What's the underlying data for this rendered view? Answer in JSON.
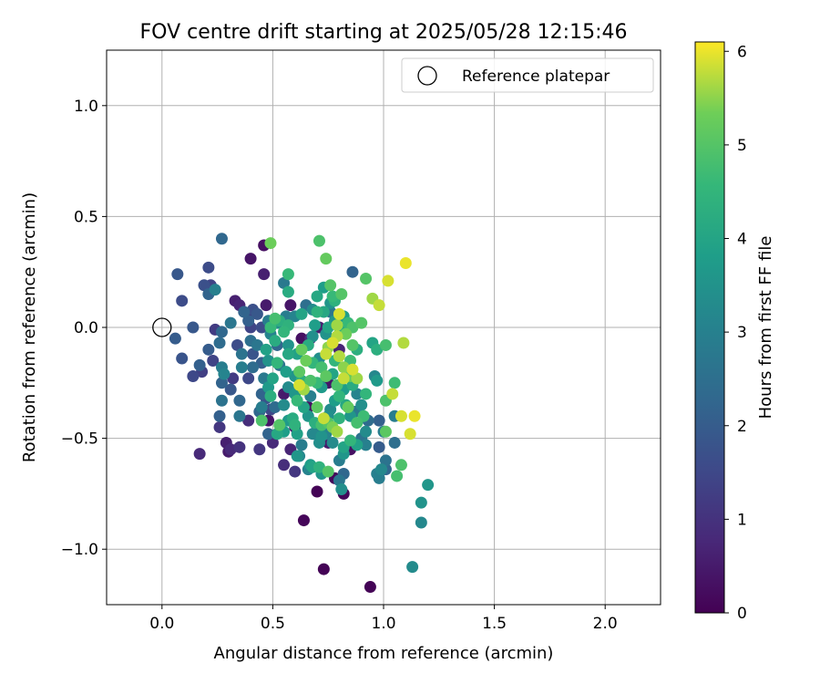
{
  "chart_data": {
    "type": "scatter",
    "title": "FOV centre drift starting at 2025/05/28 12:15:46",
    "xlabel": "Angular distance from reference (arcmin)",
    "ylabel": "Rotation from reference (arcmin)",
    "xlim": [
      -0.25,
      2.25
    ],
    "ylim": [
      -1.25,
      1.25
    ],
    "xticks": [
      0.0,
      0.5,
      1.0,
      1.5,
      2.0
    ],
    "xtick_labels": [
      "0.0",
      "0.5",
      "1.0",
      "1.5",
      "2.0"
    ],
    "yticks": [
      -1.0,
      -0.5,
      0.0,
      0.5,
      1.0
    ],
    "ytick_labels": [
      "−1.0",
      "−0.5",
      "0.0",
      "0.5",
      "1.0"
    ],
    "grid": true,
    "legend": {
      "position": "top-right",
      "entries": [
        "Reference platepar"
      ]
    },
    "reference_point": {
      "x": 0.0,
      "y": 0.0
    },
    "colorbar": {
      "label": "Hours from first FF file",
      "colormap": "viridis",
      "min": 0,
      "max": 6.1,
      "ticks": [
        0,
        1,
        2,
        3,
        4,
        5,
        6
      ],
      "tick_labels": [
        "0",
        "1",
        "2",
        "3",
        "4",
        "5",
        "6"
      ]
    },
    "points": [
      [
        0.73,
        -1.09,
        0.05
      ],
      [
        0.94,
        -1.17,
        0.05
      ],
      [
        0.64,
        -0.87,
        0.1
      ],
      [
        0.7,
        -0.74,
        0.05
      ],
      [
        0.82,
        -0.75,
        0.1
      ],
      [
        0.78,
        -0.68,
        0.15
      ],
      [
        0.4,
        0.31,
        0.4
      ],
      [
        0.46,
        0.24,
        0.6
      ],
      [
        0.46,
        0.37,
        0.3
      ],
      [
        0.58,
        0.1,
        0.4
      ],
      [
        0.47,
        0.1,
        0.5
      ],
      [
        0.33,
        0.12,
        0.6
      ],
      [
        0.35,
        0.1,
        0.7
      ],
      [
        0.41,
        0.07,
        0.5
      ],
      [
        0.63,
        -0.05,
        0.3
      ],
      [
        0.71,
        0.0,
        0.6
      ],
      [
        0.67,
        -0.05,
        0.8
      ],
      [
        0.8,
        -0.1,
        0.7
      ],
      [
        0.75,
        -0.25,
        0.4
      ],
      [
        0.66,
        -0.36,
        0.3
      ],
      [
        0.55,
        -0.3,
        0.5
      ],
      [
        0.48,
        -0.42,
        0.4
      ],
      [
        0.6,
        -0.45,
        0.6
      ],
      [
        0.69,
        -0.48,
        0.2
      ],
      [
        0.75,
        -0.52,
        0.5
      ],
      [
        0.85,
        -0.55,
        0.3
      ],
      [
        0.58,
        -0.55,
        0.7
      ],
      [
        0.5,
        -0.52,
        0.8
      ],
      [
        0.55,
        -0.62,
        0.9
      ],
      [
        0.6,
        -0.65,
        1.1
      ],
      [
        0.29,
        -0.52,
        0.6
      ],
      [
        0.31,
        -0.55,
        0.8
      ],
      [
        0.3,
        -0.56,
        0.5
      ],
      [
        0.35,
        -0.54,
        1.0
      ],
      [
        0.44,
        -0.55,
        1.1
      ],
      [
        0.39,
        -0.42,
        0.9
      ],
      [
        0.17,
        -0.57,
        0.8
      ],
      [
        0.26,
        -0.45,
        1.1
      ],
      [
        0.18,
        -0.2,
        1.3
      ],
      [
        0.14,
        -0.22,
        1.5
      ],
      [
        0.09,
        -0.14,
        1.8
      ],
      [
        0.06,
        -0.05,
        2.0
      ],
      [
        0.09,
        0.12,
        1.6
      ],
      [
        0.07,
        0.24,
        1.9
      ],
      [
        0.19,
        0.19,
        1.7
      ],
      [
        0.21,
        0.27,
        1.6
      ],
      [
        0.22,
        0.19,
        1.4
      ],
      [
        0.21,
        0.15,
        2.2
      ],
      [
        0.24,
        0.17,
        3.0
      ],
      [
        0.24,
        -0.01,
        1.2
      ],
      [
        0.14,
        0.0,
        1.9
      ],
      [
        0.17,
        -0.17,
        2.1
      ],
      [
        0.21,
        -0.1,
        2.0
      ],
      [
        0.23,
        -0.15,
        1.4
      ],
      [
        0.26,
        -0.07,
        2.4
      ],
      [
        0.27,
        -0.02,
        2.3
      ],
      [
        0.31,
        0.02,
        2.7
      ],
      [
        0.27,
        -0.18,
        2.9
      ],
      [
        0.28,
        -0.21,
        3.1
      ],
      [
        0.27,
        -0.25,
        2.2
      ],
      [
        0.27,
        -0.33,
        2.6
      ],
      [
        0.26,
        -0.4,
        2.1
      ],
      [
        0.35,
        -0.33,
        2.3
      ],
      [
        0.35,
        -0.4,
        2.7
      ],
      [
        0.27,
        0.4,
        2.3
      ],
      [
        0.37,
        0.07,
        2.2
      ],
      [
        0.39,
        0.03,
        2.1
      ],
      [
        0.41,
        0.08,
        1.7
      ],
      [
        0.43,
        0.06,
        1.9
      ],
      [
        0.4,
        0.0,
        1.4
      ],
      [
        0.34,
        -0.08,
        1.6
      ],
      [
        0.36,
        -0.12,
        2.6
      ],
      [
        0.4,
        -0.06,
        2.5
      ],
      [
        0.41,
        -0.12,
        1.8
      ],
      [
        0.43,
        -0.08,
        2.7
      ],
      [
        0.41,
        -0.18,
        2.4
      ],
      [
        0.39,
        -0.23,
        1.5
      ],
      [
        0.32,
        -0.23,
        1.2
      ],
      [
        0.45,
        -0.16,
        2.1
      ],
      [
        0.46,
        -0.23,
        2.8
      ],
      [
        0.45,
        -0.3,
        2.2
      ],
      [
        0.47,
        -0.32,
        1.8
      ],
      [
        0.49,
        -0.37,
        1.5
      ],
      [
        0.45,
        -0.36,
        2.9
      ],
      [
        0.51,
        -0.36,
        2.4
      ],
      [
        0.49,
        -0.03,
        3.1
      ],
      [
        0.48,
        0.03,
        2.9
      ],
      [
        0.45,
        0.0,
        1.6
      ],
      [
        0.52,
        -0.08,
        2.3
      ],
      [
        0.53,
        -0.17,
        2.6
      ],
      [
        0.52,
        0.02,
        3.3
      ],
      [
        0.55,
        -0.02,
        4.5
      ],
      [
        0.57,
        0.01,
        4.4
      ],
      [
        0.57,
        -0.12,
        4.1
      ],
      [
        0.56,
        -0.2,
        3.8
      ],
      [
        0.6,
        -0.22,
        3.5
      ],
      [
        0.57,
        -0.27,
        3.3
      ],
      [
        0.61,
        -0.33,
        4.6
      ],
      [
        0.59,
        -0.41,
        4.2
      ],
      [
        0.61,
        -0.48,
        3.9
      ],
      [
        0.63,
        -0.53,
        2.9
      ],
      [
        0.61,
        -0.58,
        3.6
      ],
      [
        0.66,
        -0.64,
        3.1
      ],
      [
        0.68,
        -0.63,
        4.0
      ],
      [
        0.71,
        -0.52,
        3.4
      ],
      [
        0.74,
        -0.48,
        3.1
      ],
      [
        0.72,
        -0.44,
        4.8
      ],
      [
        0.75,
        -0.43,
        5.0
      ],
      [
        0.77,
        -0.45,
        5.4
      ],
      [
        0.79,
        -0.47,
        5.6
      ],
      [
        0.8,
        -0.41,
        4.4
      ],
      [
        0.83,
        -0.35,
        4.1
      ],
      [
        0.82,
        -0.28,
        3.8
      ],
      [
        0.85,
        -0.22,
        5.2
      ],
      [
        0.82,
        -0.18,
        5.5
      ],
      [
        0.85,
        -0.15,
        4.7
      ],
      [
        0.88,
        -0.1,
        4.3
      ],
      [
        0.86,
        -0.08,
        5.0
      ],
      [
        0.83,
        -0.03,
        5.3
      ],
      [
        0.86,
        0.0,
        4.9
      ],
      [
        0.9,
        0.02,
        5.0
      ],
      [
        0.84,
        0.02,
        4.6
      ],
      [
        0.8,
        0.0,
        4.2
      ],
      [
        0.79,
        0.01,
        5.6
      ],
      [
        0.82,
        0.05,
        3.8
      ],
      [
        0.8,
        0.06,
        5.9
      ],
      [
        0.78,
        0.03,
        3.6
      ],
      [
        0.75,
        0.0,
        4.0
      ],
      [
        0.74,
        -0.03,
        3.5
      ],
      [
        0.73,
        0.07,
        4.1
      ],
      [
        0.7,
        0.07,
        4.4
      ],
      [
        0.69,
        0.01,
        3.8
      ],
      [
        0.68,
        -0.04,
        3.4
      ],
      [
        0.66,
        -0.08,
        4.2
      ],
      [
        0.63,
        -0.1,
        5.2
      ],
      [
        0.61,
        -0.12,
        3.9
      ],
      [
        0.65,
        -0.15,
        5.3
      ],
      [
        0.68,
        -0.16,
        4.5
      ],
      [
        0.71,
        -0.14,
        3.4
      ],
      [
        0.72,
        -0.18,
        4.8
      ],
      [
        0.74,
        -0.12,
        5.8
      ],
      [
        0.75,
        -0.09,
        5.5
      ],
      [
        0.77,
        -0.07,
        5.9
      ],
      [
        0.79,
        -0.04,
        5.7
      ],
      [
        0.8,
        -0.13,
        5.7
      ],
      [
        0.77,
        -0.21,
        4.0
      ],
      [
        0.74,
        -0.22,
        5.1
      ],
      [
        0.72,
        -0.27,
        3.7
      ],
      [
        0.7,
        -0.25,
        4.6
      ],
      [
        0.67,
        -0.24,
        4.9
      ],
      [
        0.63,
        -0.24,
        4.3
      ],
      [
        0.64,
        -0.28,
        5.6
      ],
      [
        0.62,
        -0.26,
        5.9
      ],
      [
        0.6,
        -0.3,
        3.6
      ],
      [
        0.64,
        -0.36,
        4.0
      ],
      [
        0.66,
        -0.4,
        3.6
      ],
      [
        0.69,
        -0.43,
        4.3
      ],
      [
        0.68,
        -0.48,
        3.2
      ],
      [
        0.7,
        -0.45,
        3.0
      ],
      [
        0.72,
        -0.49,
        3.5
      ],
      [
        0.73,
        -0.41,
        5.8
      ],
      [
        0.76,
        -0.37,
        3.3
      ],
      [
        0.78,
        -0.33,
        3.8
      ],
      [
        0.8,
        -0.31,
        4.5
      ],
      [
        0.79,
        -0.26,
        4.9
      ],
      [
        0.82,
        -0.23,
        5.8
      ],
      [
        0.86,
        -0.19,
        5.9
      ],
      [
        0.88,
        -0.23,
        5.6
      ],
      [
        0.86,
        -0.26,
        4.2
      ],
      [
        0.88,
        -0.3,
        3.1
      ],
      [
        0.9,
        -0.35,
        3.4
      ],
      [
        0.87,
        -0.38,
        2.8
      ],
      [
        0.85,
        -0.4,
        3.6
      ],
      [
        0.88,
        -0.43,
        4.8
      ],
      [
        0.91,
        -0.4,
        4.7
      ],
      [
        0.93,
        -0.42,
        2.4
      ],
      [
        0.92,
        -0.47,
        3.3
      ],
      [
        0.9,
        -0.5,
        2.6
      ],
      [
        0.92,
        -0.53,
        3.0
      ],
      [
        0.88,
        -0.53,
        3.9
      ],
      [
        0.85,
        -0.51,
        4.5
      ],
      [
        0.82,
        -0.54,
        4.0
      ],
      [
        0.82,
        -0.57,
        3.6
      ],
      [
        0.8,
        -0.6,
        2.9
      ],
      [
        0.82,
        -0.66,
        2.3
      ],
      [
        0.8,
        -0.69,
        2.7
      ],
      [
        0.81,
        -0.73,
        3.4
      ],
      [
        0.75,
        -0.65,
        5.0
      ],
      [
        0.72,
        -0.66,
        3.6
      ],
      [
        0.71,
        -0.63,
        4.4
      ],
      [
        0.67,
        -0.62,
        3.8
      ],
      [
        0.62,
        -0.58,
        3.2
      ],
      [
        0.6,
        -0.44,
        4.4
      ],
      [
        0.57,
        -0.42,
        3.7
      ],
      [
        0.53,
        -0.44,
        5.0
      ],
      [
        0.55,
        -0.47,
        3.8
      ],
      [
        0.52,
        -0.48,
        4.1
      ],
      [
        0.48,
        -0.48,
        2.2
      ],
      [
        0.45,
        -0.42,
        4.9
      ],
      [
        0.49,
        -0.31,
        4.3
      ],
      [
        0.48,
        -0.27,
        3.7
      ],
      [
        0.5,
        -0.23,
        4.0
      ],
      [
        0.52,
        -0.16,
        4.5
      ],
      [
        0.48,
        -0.15,
        3.5
      ],
      [
        0.47,
        -0.1,
        3.9
      ],
      [
        0.51,
        -0.06,
        4.2
      ],
      [
        0.49,
        0.0,
        4.6
      ],
      [
        0.51,
        0.04,
        4.8
      ],
      [
        0.53,
        0.03,
        4.3
      ],
      [
        0.56,
        0.05,
        2.9
      ],
      [
        0.57,
        0.16,
        4.2
      ],
      [
        0.55,
        0.2,
        2.8
      ],
      [
        0.57,
        0.24,
        4.6
      ],
      [
        0.49,
        0.38,
        5.3
      ],
      [
        0.6,
        0.05,
        3.1
      ],
      [
        0.63,
        0.06,
        4.0
      ],
      [
        0.65,
        0.1,
        2.5
      ],
      [
        0.68,
        0.08,
        3.3
      ],
      [
        0.7,
        0.14,
        4.1
      ],
      [
        0.71,
        0.39,
        4.9
      ],
      [
        0.73,
        0.18,
        3.8
      ],
      [
        0.74,
        0.31,
        5.2
      ],
      [
        0.76,
        0.19,
        5.0
      ],
      [
        0.77,
        0.14,
        4.6
      ],
      [
        0.76,
        0.11,
        3.6
      ],
      [
        0.76,
        0.07,
        2.7
      ],
      [
        0.78,
        0.12,
        4.4
      ],
      [
        0.81,
        0.15,
        5.0
      ],
      [
        0.86,
        0.25,
        2.2
      ],
      [
        0.92,
        0.22,
        5.0
      ],
      [
        0.95,
        0.13,
        5.6
      ],
      [
        0.98,
        0.1,
        5.8
      ],
      [
        1.02,
        0.21,
        5.9
      ],
      [
        1.1,
        0.29,
        6.0
      ],
      [
        0.95,
        -0.07,
        4.0
      ],
      [
        0.97,
        -0.1,
        4.3
      ],
      [
        0.96,
        -0.22,
        3.2
      ],
      [
        0.97,
        -0.24,
        3.7
      ],
      [
        0.98,
        -0.42,
        2.1
      ],
      [
        1.0,
        -0.47,
        2.9
      ],
      [
        0.98,
        -0.54,
        2.0
      ],
      [
        1.01,
        -0.6,
        2.6
      ],
      [
        0.99,
        -0.64,
        3.2
      ],
      [
        0.98,
        -0.68,
        2.9
      ],
      [
        0.97,
        -0.66,
        3.0
      ],
      [
        1.01,
        -0.64,
        2.3
      ],
      [
        1.01,
        -0.33,
        4.9
      ],
      [
        1.01,
        -0.08,
        4.8
      ],
      [
        1.05,
        -0.25,
        4.7
      ],
      [
        1.05,
        -0.4,
        2.9
      ],
      [
        1.04,
        -0.3,
        5.8
      ],
      [
        1.05,
        -0.52,
        2.5
      ],
      [
        1.06,
        -0.67,
        4.8
      ],
      [
        1.08,
        -0.62,
        4.9
      ],
      [
        1.08,
        -0.4,
        5.9
      ],
      [
        1.09,
        -0.07,
        5.7
      ],
      [
        1.12,
        -0.48,
        5.9
      ],
      [
        1.14,
        -0.4,
        6.0
      ],
      [
        1.13,
        -1.08,
        3.3
      ],
      [
        1.17,
        -0.79,
        3.5
      ],
      [
        1.17,
        -0.88,
        3.2
      ],
      [
        1.2,
        -0.71,
        3.6
      ],
      [
        1.01,
        -0.47,
        5.1
      ],
      [
        0.75,
        -0.4,
        3.4
      ],
      [
        0.67,
        -0.31,
        3.0
      ],
      [
        0.55,
        -0.35,
        3.3
      ],
      [
        0.44,
        -0.38,
        2.3
      ],
      [
        0.36,
        -0.18,
        2.9
      ],
      [
        0.31,
        -0.28,
        1.9
      ],
      [
        0.62,
        -0.2,
        5.1
      ],
      [
        0.7,
        -0.36,
        5.1
      ],
      [
        0.78,
        -0.15,
        4.5
      ],
      [
        0.84,
        -0.36,
        5.2
      ],
      [
        0.77,
        -0.52,
        3.3
      ],
      [
        0.92,
        -0.3,
        4.5
      ],
      [
        0.57,
        -0.08,
        3.5
      ]
    ]
  }
}
